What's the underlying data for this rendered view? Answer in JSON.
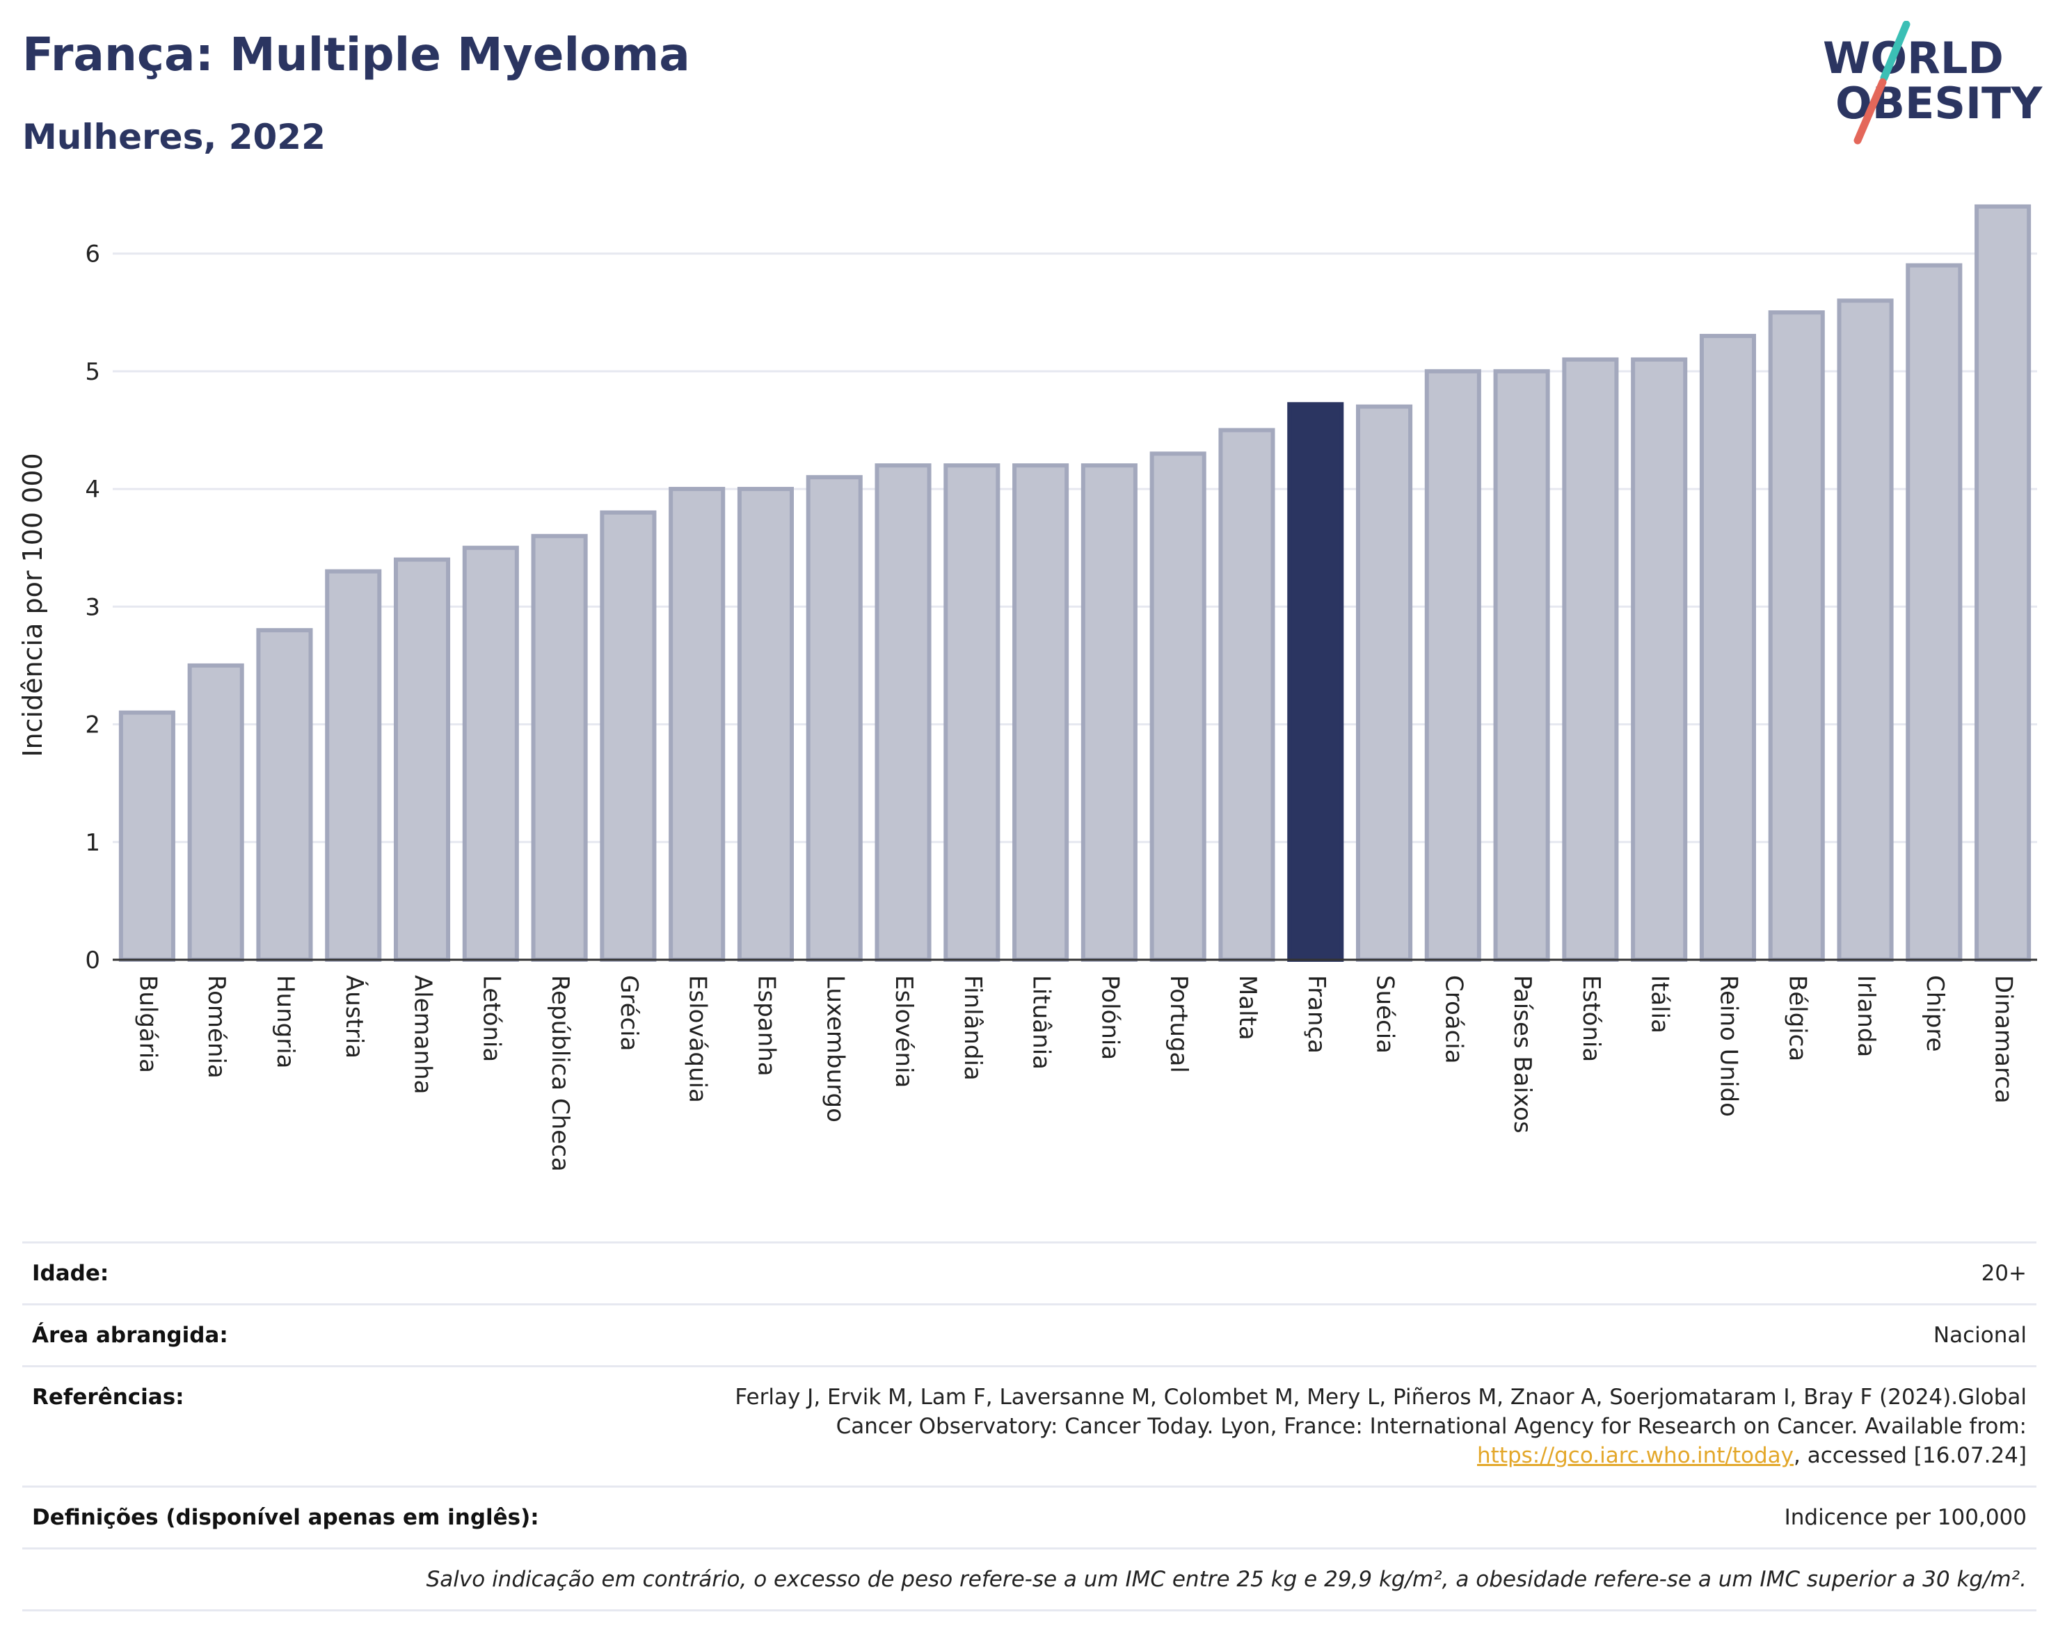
{
  "header": {
    "title": "França: Multiple Myeloma",
    "subtitle": "Mulheres, 2022"
  },
  "logo": {
    "line1": "WORLD",
    "line2": "OBESITY",
    "colors": {
      "text": "#2b3561",
      "slash_top": "#3bbfb5",
      "slash_bottom": "#e4675a"
    }
  },
  "chart_data": {
    "type": "bar",
    "title": "",
    "xlabel": "",
    "ylabel": "Incidência por 100 000",
    "ylim": [
      0,
      6.5
    ],
    "yticks": [
      0,
      1,
      2,
      3,
      4,
      5,
      6
    ],
    "grid": true,
    "legend": "none",
    "highlight": "França",
    "colors": {
      "bar": "#c0c3d0",
      "bar_edge": "#a3a8bd",
      "highlight": "#2b3561",
      "grid": "#e6e8f0",
      "axis": "#333333"
    },
    "categories": [
      "Bulgária",
      "Roménia",
      "Hungria",
      "Áustria",
      "Alemanha",
      "Letónia",
      "República Checa",
      "Grécia",
      "Eslováquia",
      "Espanha",
      "Luxemburgo",
      "Eslovénia",
      "Finlândia",
      "Lituânia",
      "Polónia",
      "Portugal",
      "Malta",
      "França",
      "Suécia",
      "Croácia",
      "Países Baixos",
      "Estónia",
      "Itália",
      "Reino Unido",
      "Bélgica",
      "Irlanda",
      "Chipre",
      "Dinamarca"
    ],
    "values": [
      2.1,
      2.5,
      2.8,
      3.3,
      3.4,
      3.5,
      3.6,
      3.8,
      4.0,
      4.0,
      4.1,
      4.2,
      4.2,
      4.2,
      4.2,
      4.3,
      4.5,
      4.72,
      4.7,
      5.0,
      5.0,
      5.1,
      5.1,
      5.3,
      5.5,
      5.6,
      5.9,
      6.4
    ]
  },
  "info": {
    "age_label": "Idade:",
    "age_value": "20+",
    "area_label": "Área abrangida:",
    "area_value": "Nacional",
    "refs_label": "Referências:",
    "refs_text": "Ferlay J, Ervik M, Lam F, Laversanne M, Colombet M, Mery L, Piñeros M, Znaor A, Soerjomataram I, Bray F (2024).Global Cancer Observatory: Cancer Today. Lyon, France: International Agency for Research on Cancer. Available from:",
    "refs_link": "https://gco.iarc.who.int/today",
    "refs_suffix": ", accessed [16.07.24]",
    "defs_label": "Definições (disponível apenas em inglês):",
    "defs_value": "Indicence per 100,000",
    "note": "Salvo indicação em contrário, o excesso de peso refere-se a um IMC entre 25 kg e 29,9 kg/m², a obesidade refere-se a um IMC superior a 30 kg/m²."
  }
}
